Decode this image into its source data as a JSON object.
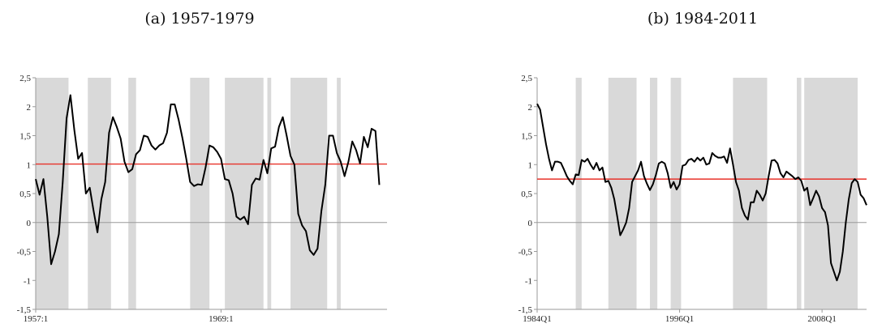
{
  "charts": [
    {
      "title": "(a) 1957-1979"
    },
    {
      "title": "(b) 1984-2011"
    }
  ],
  "chart_data": [
    {
      "type": "line",
      "title": "(a) 1957-1979",
      "ylim": [
        -1.5,
        2.5
      ],
      "yticks": [
        -1.5,
        -1,
        -0.5,
        0,
        0.5,
        1,
        1.5,
        2,
        2.5
      ],
      "ytick_labels": [
        "-1,5",
        "-1",
        "-0,5",
        "0",
        "0,5",
        "1",
        "1,5",
        "2",
        "2,5"
      ],
      "x_range": [
        0,
        91
      ],
      "xticks": [
        {
          "pos": 0,
          "label": "1957:1"
        },
        {
          "pos": 48,
          "label": "1969:1"
        }
      ],
      "hline": {
        "value": 1.01,
        "color": "#e8322a"
      },
      "zero_line": true,
      "shaded": [
        [
          0,
          8.5
        ],
        [
          13.5,
          19.5
        ],
        [
          24,
          26
        ],
        [
          40,
          45
        ],
        [
          49,
          59
        ],
        [
          60,
          61
        ],
        [
          66,
          75.5
        ],
        [
          78,
          79
        ]
      ],
      "series": [
        {
          "color": "#000000",
          "values": [
            0.75,
            0.48,
            0.75,
            0.1,
            -0.72,
            -0.5,
            -0.2,
            0.7,
            1.8,
            2.2,
            1.6,
            1.1,
            1.2,
            0.5,
            0.6,
            0.2,
            -0.17,
            0.4,
            0.7,
            1.55,
            1.82,
            1.65,
            1.45,
            1.05,
            0.87,
            0.92,
            1.18,
            1.25,
            1.5,
            1.48,
            1.33,
            1.26,
            1.33,
            1.37,
            1.55,
            2.04,
            2.04,
            1.78,
            1.46,
            1.1,
            0.7,
            0.63,
            0.66,
            0.65,
            0.95,
            1.33,
            1.3,
            1.22,
            1.1,
            0.75,
            0.73,
            0.5,
            0.1,
            0.05,
            0.1,
            -0.03,
            0.65,
            0.76,
            0.74,
            1.08,
            0.85,
            1.28,
            1.31,
            1.65,
            1.82,
            1.5,
            1.15,
            1.0,
            0.15,
            -0.05,
            -0.15,
            -0.48,
            -0.56,
            -0.45,
            0.2,
            0.65,
            1.5,
            1.5,
            1.2,
            1.05,
            0.8,
            1.05,
            1.4,
            1.25,
            1.02,
            1.48,
            1.3,
            1.62,
            1.58,
            0.65
          ]
        }
      ]
    },
    {
      "type": "line",
      "title": "(b) 1984-2011",
      "ylim": [
        -1.5,
        2.5
      ],
      "yticks": [
        -1.5,
        -1,
        -0.5,
        0,
        0.5,
        1,
        1.5,
        2,
        2.5
      ],
      "ytick_labels": [
        "-1,5",
        "-1",
        "-0,5",
        "0",
        "0,5",
        "1",
        "1,5",
        "2",
        "2,5"
      ],
      "x_range": [
        0,
        111
      ],
      "xticks": [
        {
          "pos": 0,
          "label": "1984Q1"
        },
        {
          "pos": 48,
          "label": "1996Q1"
        },
        {
          "pos": 96,
          "label": "2008Q1"
        }
      ],
      "hline": {
        "value": 0.75,
        "color": "#e8322a"
      },
      "zero_line": true,
      "shaded": [
        [
          13,
          15
        ],
        [
          24,
          33.5
        ],
        [
          38,
          40.5
        ],
        [
          45,
          48.5
        ],
        [
          66,
          77.5
        ],
        [
          87.5,
          89
        ],
        [
          90,
          108
        ]
      ],
      "series": [
        {
          "color": "#000000",
          "values": [
            2.05,
            1.95,
            1.65,
            1.35,
            1.1,
            0.9,
            1.05,
            1.05,
            1.03,
            0.92,
            0.8,
            0.72,
            0.66,
            0.83,
            0.82,
            1.08,
            1.05,
            1.1,
            1.0,
            0.92,
            1.03,
            0.9,
            0.95,
            0.7,
            0.72,
            0.6,
            0.4,
            0.1,
            -0.22,
            -0.12,
            0.0,
            0.25,
            0.7,
            0.8,
            0.9,
            1.05,
            0.8,
            0.67,
            0.56,
            0.66,
            0.82,
            1.02,
            1.05,
            1.02,
            0.85,
            0.6,
            0.7,
            0.57,
            0.66,
            0.98,
            1.0,
            1.08,
            1.1,
            1.05,
            1.12,
            1.07,
            1.12,
            1.0,
            1.02,
            1.2,
            1.15,
            1.12,
            1.12,
            1.14,
            1.03,
            1.28,
            1.0,
            0.7,
            0.55,
            0.25,
            0.12,
            0.05,
            0.35,
            0.35,
            0.55,
            0.48,
            0.38,
            0.5,
            0.8,
            1.07,
            1.08,
            1.02,
            0.85,
            0.78,
            0.88,
            0.84,
            0.8,
            0.75,
            0.78,
            0.72,
            0.55,
            0.6,
            0.3,
            0.42,
            0.55,
            0.45,
            0.25,
            0.18,
            -0.05,
            -0.7,
            -0.85,
            -1.0,
            -0.85,
            -0.5,
            0.0,
            0.4,
            0.68,
            0.75,
            0.7,
            0.48,
            0.42,
            0.3
          ]
        }
      ]
    }
  ]
}
